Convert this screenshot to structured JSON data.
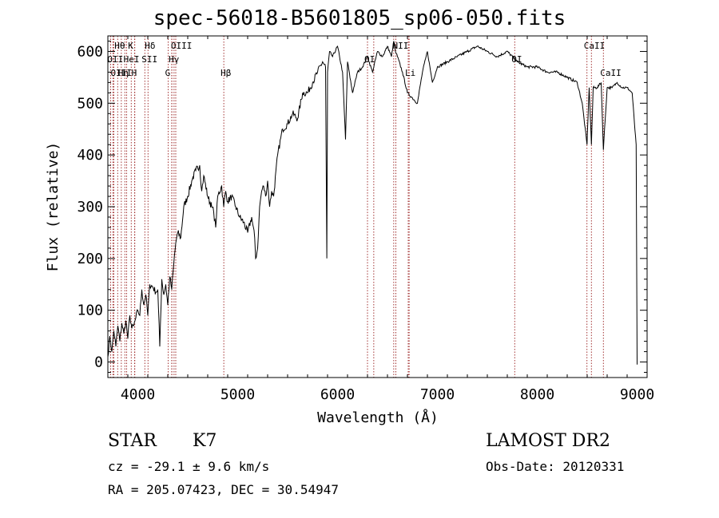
{
  "title": "spec-56018-B5601805_sp06-050.fits",
  "meta": {
    "class_label": "STAR",
    "subclass": "K7",
    "cz": "cz = -29.1 ± 9.6 km/s",
    "coords": "RA = 205.07423, DEC =  30.54947",
    "survey": "LAMOST DR2",
    "obs_date": "Obs-Date: 20120331"
  },
  "chart_data": {
    "type": "line",
    "xlabel": "Wavelength (Å)",
    "ylabel": "Flux (relative)",
    "xlim": [
      3700,
      9100
    ],
    "ylim": [
      -30,
      630
    ],
    "xticks": [
      4000,
      5000,
      6000,
      7000,
      8000,
      9000
    ],
    "yticks": [
      0,
      100,
      200,
      300,
      400,
      500,
      600
    ],
    "series": [
      {
        "x": [
          3700,
          3720,
          3740,
          3760,
          3780,
          3800,
          3820,
          3840,
          3860,
          3880,
          3900,
          3920,
          3940,
          3960,
          3980,
          4000,
          4020,
          4040,
          4060,
          4080,
          4100,
          4120,
          4150,
          4180,
          4200,
          4220,
          4240,
          4260,
          4280,
          4300,
          4320,
          4340,
          4360,
          4380,
          4400,
          4430,
          4460,
          4500,
          4540,
          4580,
          4620,
          4640,
          4660,
          4700,
          4740,
          4760,
          4780,
          4800,
          4840,
          4860,
          4880,
          4900,
          4940,
          4980,
          5020,
          5060,
          5100,
          5140,
          5170,
          5180,
          5200,
          5220,
          5240,
          5260,
          5280,
          5300,
          5320,
          5340,
          5360,
          5400,
          5450,
          5500,
          5550,
          5600,
          5650,
          5700,
          5750,
          5800,
          5850,
          5880,
          5893,
          5900,
          5920,
          5950,
          6000,
          6050,
          6080,
          6100,
          6150,
          6200,
          6250,
          6300,
          6350,
          6400,
          6450,
          6500,
          6540,
          6563,
          6580,
          6600,
          6650,
          6700,
          6750,
          6800,
          6850,
          6900,
          6950,
          7000,
          7100,
          7200,
          7300,
          7400,
          7500,
          7600,
          7700,
          7800,
          7900,
          8000,
          8100,
          8200,
          8300,
          8400,
          8450,
          8498,
          8520,
          8542,
          8560,
          8600,
          8640,
          8662,
          8700,
          8750,
          8800,
          8850,
          8900,
          8950,
          8990,
          9000
        ],
        "y": [
          10,
          50,
          20,
          60,
          30,
          70,
          40,
          75,
          55,
          80,
          45,
          90,
          65,
          70,
          85,
          100,
          90,
          140,
          110,
          130,
          90,
          150,
          145,
          135,
          140,
          30,
          160,
          130,
          150,
          110,
          165,
          140,
          190,
          230,
          250,
          240,
          300,
          320,
          350,
          370,
          380,
          330,
          360,
          320,
          300,
          290,
          260,
          320,
          340,
          300,
          330,
          310,
          320,
          300,
          280,
          270,
          250,
          280,
          240,
          200,
          220,
          300,
          330,
          340,
          320,
          350,
          300,
          330,
          320,
          400,
          450,
          460,
          480,
          470,
          520,
          520,
          540,
          560,
          580,
          570,
          200,
          560,
          600,
          590,
          610,
          560,
          430,
          580,
          520,
          560,
          570,
          590,
          560,
          600,
          590,
          610,
          590,
          620,
          600,
          590,
          560,
          520,
          510,
          500,
          560,
          600,
          540,
          570,
          580,
          590,
          600,
          610,
          600,
          590,
          600,
          580,
          570,
          570,
          560,
          560,
          550,
          540,
          500,
          420,
          530,
          420,
          530,
          530,
          540,
          410,
          530,
          530,
          540,
          530,
          530,
          520,
          420,
          -5
        ]
      }
    ],
    "lines": [
      {
        "label": "Hθ",
        "w": 3798,
        "row": 0
      },
      {
        "label": "K",
        "w": 3934,
        "row": 0
      },
      {
        "label": "Hδ",
        "w": 4102,
        "row": 0
      },
      {
        "label": "OII",
        "w": 3727,
        "row": 1
      },
      {
        "label": "HeI",
        "w": 3889,
        "row": 1
      },
      {
        "label": "SII",
        "w": 4070,
        "row": 1
      },
      {
        "label": "OIII",
        "w": 4363,
        "row": 0
      },
      {
        "label": "Hγ",
        "w": 4341,
        "row": 1
      },
      {
        "label": "OIII",
        "w": 3760,
        "row": 2
      },
      {
        "label": "Hη",
        "w": 3835,
        "row": 2
      },
      {
        "label": "H",
        "w": 3969,
        "row": 2
      },
      {
        "label": "G",
        "w": 4305,
        "row": 2
      },
      {
        "label": "Hβ",
        "w": 4861,
        "row": 2
      },
      {
        "label": "OI",
        "w": 6300,
        "row": 1
      },
      {
        "label": "NII",
        "w": 6584,
        "row": 0
      },
      {
        "label": "Li",
        "w": 6708,
        "row": 2
      },
      {
        "label": "OI",
        "w": 7774,
        "row": 1
      },
      {
        "label": "CaII",
        "w": 8498,
        "row": 0
      },
      {
        "label": "CaII",
        "w": 8662,
        "row": 2
      }
    ],
    "extra_line_positions": [
      3750,
      3870,
      3970,
      4340,
      4380,
      6363,
      6563,
      6717,
      8542
    ]
  },
  "colors": {
    "line": "#000000",
    "marker": "#8b0000"
  }
}
